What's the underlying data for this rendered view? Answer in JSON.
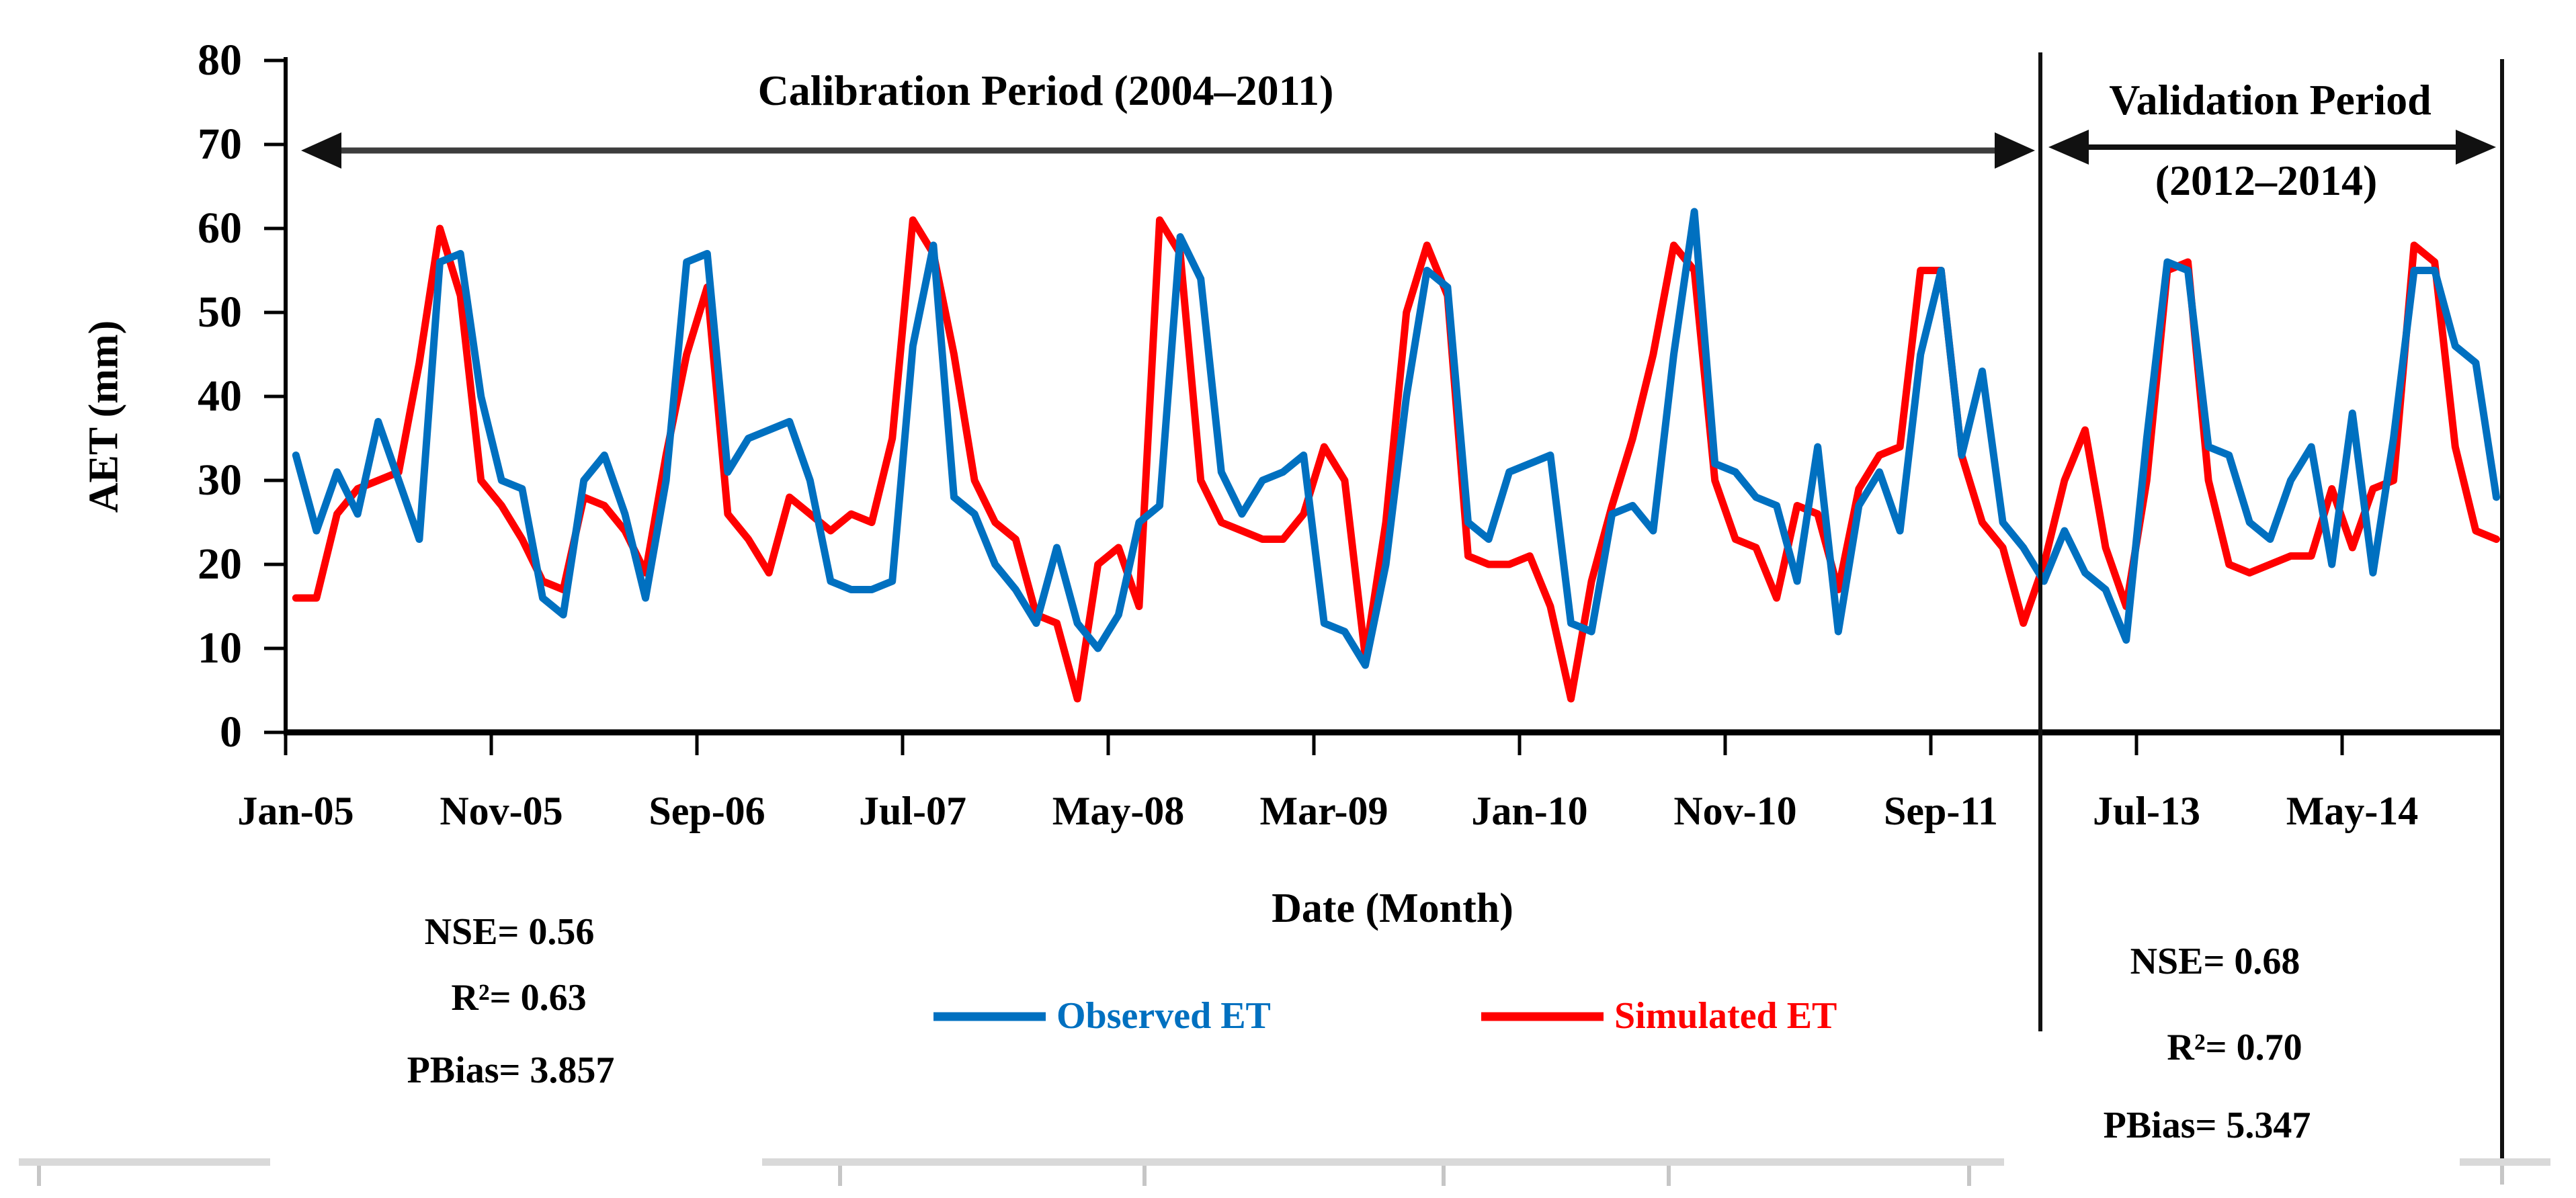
{
  "annotations": {
    "calibration_title": "Calibration Period (2004–2011)",
    "validation_title_line1": "Validation Period",
    "validation_title_line2": "(2012–2014)",
    "calibration_stats": {
      "nse_text": "NSE= 0.56",
      "r2_text": "R²= 0.63",
      "pbias_text": "PBias= 3.857",
      "nse": 0.56,
      "r2": 0.63,
      "pbias": 3.857
    },
    "validation_stats": {
      "nse_text": "NSE= 0.68",
      "r2_text": "R²= 0.70",
      "pbias_text": "PBias= 5.347",
      "nse": 0.68,
      "r2": 0.7,
      "pbias": 5.347
    }
  },
  "chart_data": {
    "type": "line",
    "title": "",
    "xlabel": "Date (Month)",
    "ylabel": "AET (mm)",
    "ylim": [
      0,
      80
    ],
    "grid": false,
    "legend_position": "bottom",
    "y_tick_labels": [
      "80",
      "70",
      "60",
      "50",
      "40",
      "30",
      "20",
      "10",
      "0"
    ],
    "x_tick_labels": [
      "Jan-05",
      "Nov-05",
      "Sep-06",
      "Jul-07",
      "May-08",
      "Mar-09",
      "Jan-10",
      "Nov-10",
      "Sep-11",
      "Jul-13",
      "May-14"
    ],
    "categories": [
      "Jan-05",
      "Feb-05",
      "Mar-05",
      "Apr-05",
      "May-05",
      "Jun-05",
      "Jul-05",
      "Aug-05",
      "Sep-05",
      "Oct-05",
      "Nov-05",
      "Dec-05",
      "Jan-06",
      "Feb-06",
      "Mar-06",
      "Apr-06",
      "May-06",
      "Jun-06",
      "Jul-06",
      "Aug-06",
      "Sep-06",
      "Oct-06",
      "Nov-06",
      "Dec-06",
      "Jan-07",
      "Feb-07",
      "Mar-07",
      "Apr-07",
      "May-07",
      "Jun-07",
      "Jul-07",
      "Aug-07",
      "Sep-07",
      "Oct-07",
      "Nov-07",
      "Dec-07",
      "Jan-08",
      "Feb-08",
      "Mar-08",
      "Apr-08",
      "May-08",
      "Jun-08",
      "Jul-08",
      "Aug-08",
      "Sep-08",
      "Oct-08",
      "Nov-08",
      "Dec-08",
      "Jan-09",
      "Feb-09",
      "Mar-09",
      "Apr-09",
      "May-09",
      "Jun-09",
      "Jul-09",
      "Aug-09",
      "Sep-09",
      "Oct-09",
      "Nov-09",
      "Dec-09",
      "Jan-10",
      "Feb-10",
      "Mar-10",
      "Apr-10",
      "May-10",
      "Jun-10",
      "Jul-10",
      "Aug-10",
      "Sep-10",
      "Oct-10",
      "Nov-10",
      "Dec-10",
      "Jan-11",
      "Feb-11",
      "Mar-11",
      "Apr-11",
      "May-11",
      "Jun-11",
      "Jul-11",
      "Aug-11",
      "Sep-11",
      "Oct-11",
      "Nov-11",
      "Dec-11",
      "Jan-13",
      "Feb-13",
      "Mar-13",
      "Apr-13",
      "May-13",
      "Jun-13",
      "Jul-13",
      "Aug-13",
      "Sep-13",
      "Oct-13",
      "Nov-13",
      "Dec-13",
      "Jan-14",
      "Feb-14",
      "Mar-14",
      "Apr-14",
      "May-14",
      "Jun-14",
      "Jul-14",
      "Aug-14",
      "Sep-14",
      "Oct-14",
      "Nov-14",
      "Dec-14"
    ],
    "series": [
      {
        "name": "Observed ET",
        "color": "#0070C0",
        "values": [
          33,
          24,
          31,
          26,
          37,
          30,
          23,
          56,
          57,
          40,
          30,
          29,
          16,
          14,
          30,
          33,
          26,
          16,
          30,
          56,
          57,
          31,
          35,
          36,
          37,
          30,
          18,
          17,
          17,
          18,
          46,
          58,
          28,
          26,
          20,
          17,
          13,
          22,
          13,
          10,
          14,
          25,
          27,
          59,
          54,
          31,
          26,
          30,
          31,
          33,
          13,
          12,
          8,
          20,
          40,
          55,
          53,
          25,
          23,
          31,
          32,
          33,
          13,
          12,
          26,
          27,
          24,
          45,
          62,
          32,
          31,
          28,
          27,
          18,
          34,
          12,
          27,
          31,
          24,
          45,
          55,
          33,
          43,
          25,
          22,
          18,
          24,
          19,
          17,
          11,
          35,
          56,
          55,
          34,
          33,
          25,
          23,
          30,
          34,
          20,
          38,
          19,
          35,
          55,
          55,
          46,
          44,
          28
        ]
      },
      {
        "name": "Simulated ET",
        "color": "#FF0000",
        "values": [
          16,
          16,
          26,
          29,
          30,
          31,
          44,
          60,
          52,
          30,
          27,
          23,
          18,
          17,
          28,
          27,
          24,
          19,
          33,
          45,
          53,
          26,
          23,
          19,
          28,
          26,
          24,
          26,
          25,
          35,
          61,
          57,
          45,
          30,
          25,
          23,
          14,
          13,
          4,
          20,
          22,
          15,
          61,
          57,
          30,
          25,
          24,
          23,
          23,
          26,
          34,
          30,
          9,
          25,
          50,
          58,
          52,
          21,
          20,
          20,
          21,
          15,
          4,
          18,
          27,
          35,
          45,
          58,
          55,
          30,
          23,
          22,
          16,
          27,
          26,
          17,
          29,
          33,
          34,
          55,
          55,
          33,
          25,
          22,
          13,
          20,
          30,
          36,
          22,
          15,
          30,
          55,
          56,
          30,
          20,
          19,
          20,
          21,
          21,
          29,
          22,
          29,
          30,
          58,
          56,
          34,
          24,
          23
        ]
      }
    ]
  }
}
